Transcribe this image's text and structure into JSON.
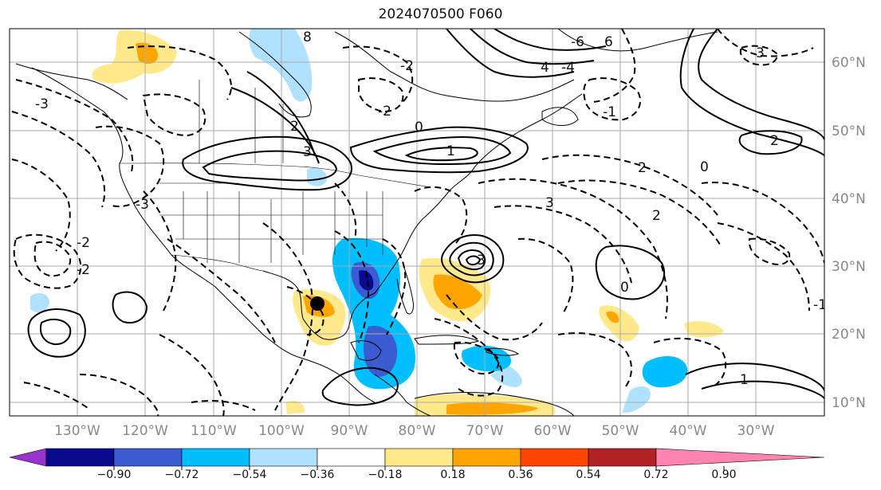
{
  "title": "2024070500 F060",
  "map": {
    "lon_labels": [
      "130°W",
      "120°W",
      "110°W",
      "100°W",
      "90°W",
      "80°W",
      "70°W",
      "60°W",
      "50°W",
      "40°W",
      "30°W"
    ],
    "lat_labels": [
      "60°N",
      "50°N",
      "40°N",
      "30°N",
      "20°N",
      "10°N"
    ],
    "grid_color": "#aaaaaa",
    "contour_color": "#000000",
    "contour_labels": [
      "8",
      "-2",
      "-3",
      "2",
      "3",
      "0",
      "-1",
      "1",
      "-4",
      "-6",
      "6",
      "4",
      "3",
      "2",
      "-2",
      "-1",
      "0",
      "1",
      "2",
      "-3",
      "-2",
      "3",
      "-3",
      "2",
      "-2",
      "0"
    ]
  },
  "colorbar": {
    "ticks": [
      "−0.90",
      "−0.72",
      "−0.54",
      "−0.36",
      "−0.18",
      "0.18",
      "0.36",
      "0.54",
      "0.72",
      "0.90"
    ],
    "colors": [
      "#9a32cd",
      "#0a0a8c",
      "#3a5cd0",
      "#00bfff",
      "#b0e2ff",
      "#ffffff",
      "#ffe98a",
      "#ffa500",
      "#ff4500",
      "#b22222",
      "#ff85b0"
    ]
  }
}
